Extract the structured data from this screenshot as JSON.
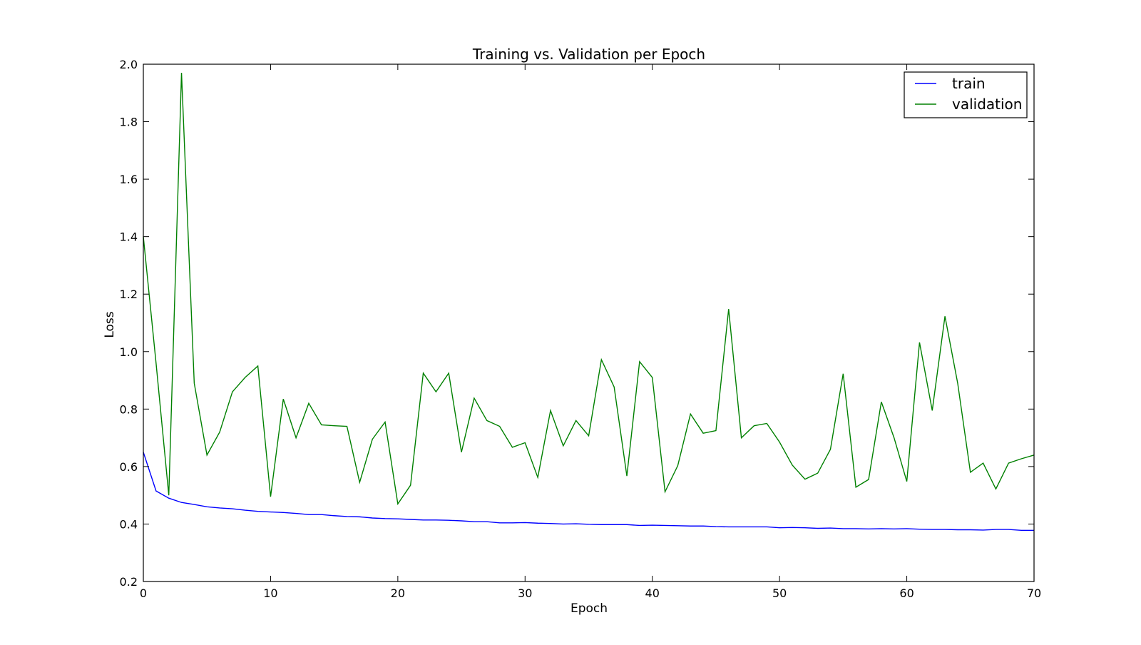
{
  "chart_data": {
    "type": "line",
    "title": "Training vs. Validation per Epoch",
    "xlabel": "Epoch",
    "ylabel": "Loss",
    "xlim": [
      0,
      70
    ],
    "ylim": [
      0.2,
      2.0
    ],
    "xticks": [
      0,
      10,
      20,
      30,
      40,
      50,
      60,
      70
    ],
    "yticks": [
      0.2,
      0.4,
      0.6,
      0.8,
      1.0,
      1.2,
      1.4,
      1.6,
      1.8,
      2.0
    ],
    "xtick_labels": [
      "0",
      "10",
      "20",
      "30",
      "40",
      "50",
      "60",
      "70"
    ],
    "ytick_labels": [
      "0.2",
      "0.4",
      "0.6",
      "0.8",
      "1.0",
      "1.2",
      "1.4",
      "1.6",
      "1.8",
      "2.0"
    ],
    "grid": false,
    "legend_position": "top-right",
    "x": [
      0,
      1,
      2,
      3,
      4,
      5,
      6,
      7,
      8,
      9,
      10,
      11,
      12,
      13,
      14,
      15,
      16,
      17,
      18,
      19,
      20,
      21,
      22,
      23,
      24,
      25,
      26,
      27,
      28,
      29,
      30,
      31,
      32,
      33,
      34,
      35,
      36,
      37,
      38,
      39,
      40,
      41,
      42,
      43,
      44,
      45,
      46,
      47,
      48,
      49,
      50,
      51,
      52,
      53,
      54,
      55,
      56,
      57,
      58,
      59,
      60,
      61,
      62,
      63,
      64,
      65,
      66,
      67,
      68,
      69,
      70
    ],
    "series": [
      {
        "name": "train",
        "color": "#0000ff",
        "values": [
          0.65,
          0.515,
          0.49,
          0.475,
          0.468,
          0.46,
          0.456,
          0.453,
          0.448,
          0.444,
          0.442,
          0.44,
          0.437,
          0.433,
          0.433,
          0.429,
          0.426,
          0.425,
          0.421,
          0.419,
          0.418,
          0.416,
          0.414,
          0.414,
          0.413,
          0.411,
          0.408,
          0.408,
          0.404,
          0.404,
          0.405,
          0.403,
          0.402,
          0.4,
          0.401,
          0.399,
          0.398,
          0.398,
          0.398,
          0.395,
          0.396,
          0.395,
          0.394,
          0.393,
          0.393,
          0.391,
          0.39,
          0.39,
          0.39,
          0.39,
          0.387,
          0.388,
          0.387,
          0.385,
          0.386,
          0.384,
          0.384,
          0.383,
          0.384,
          0.383,
          0.384,
          0.382,
          0.381,
          0.381,
          0.38,
          0.38,
          0.379,
          0.381,
          0.381,
          0.378,
          0.378
        ]
      },
      {
        "name": "validation",
        "color": "#008000",
        "values": [
          1.4,
          0.96,
          0.5,
          1.97,
          0.89,
          0.64,
          0.72,
          0.86,
          0.91,
          0.95,
          0.495,
          0.835,
          0.7,
          0.82,
          0.745,
          0.742,
          0.74,
          0.545,
          0.695,
          0.755,
          0.47,
          0.535,
          0.925,
          0.86,
          0.925,
          0.65,
          0.838,
          0.76,
          0.74,
          0.667,
          0.683,
          0.562,
          0.795,
          0.672,
          0.76,
          0.707,
          0.972,
          0.877,
          0.567,
          0.965,
          0.91,
          0.512,
          0.603,
          0.783,
          0.716,
          0.725,
          1.148,
          0.7,
          0.742,
          0.75,
          0.685,
          0.605,
          0.556,
          0.577,
          0.66,
          0.923,
          0.528,
          0.555,
          0.825,
          0.7,
          0.548,
          1.032,
          0.795,
          1.123,
          0.89,
          0.58,
          0.612,
          0.522,
          0.612,
          0.627,
          0.64
        ]
      }
    ]
  }
}
